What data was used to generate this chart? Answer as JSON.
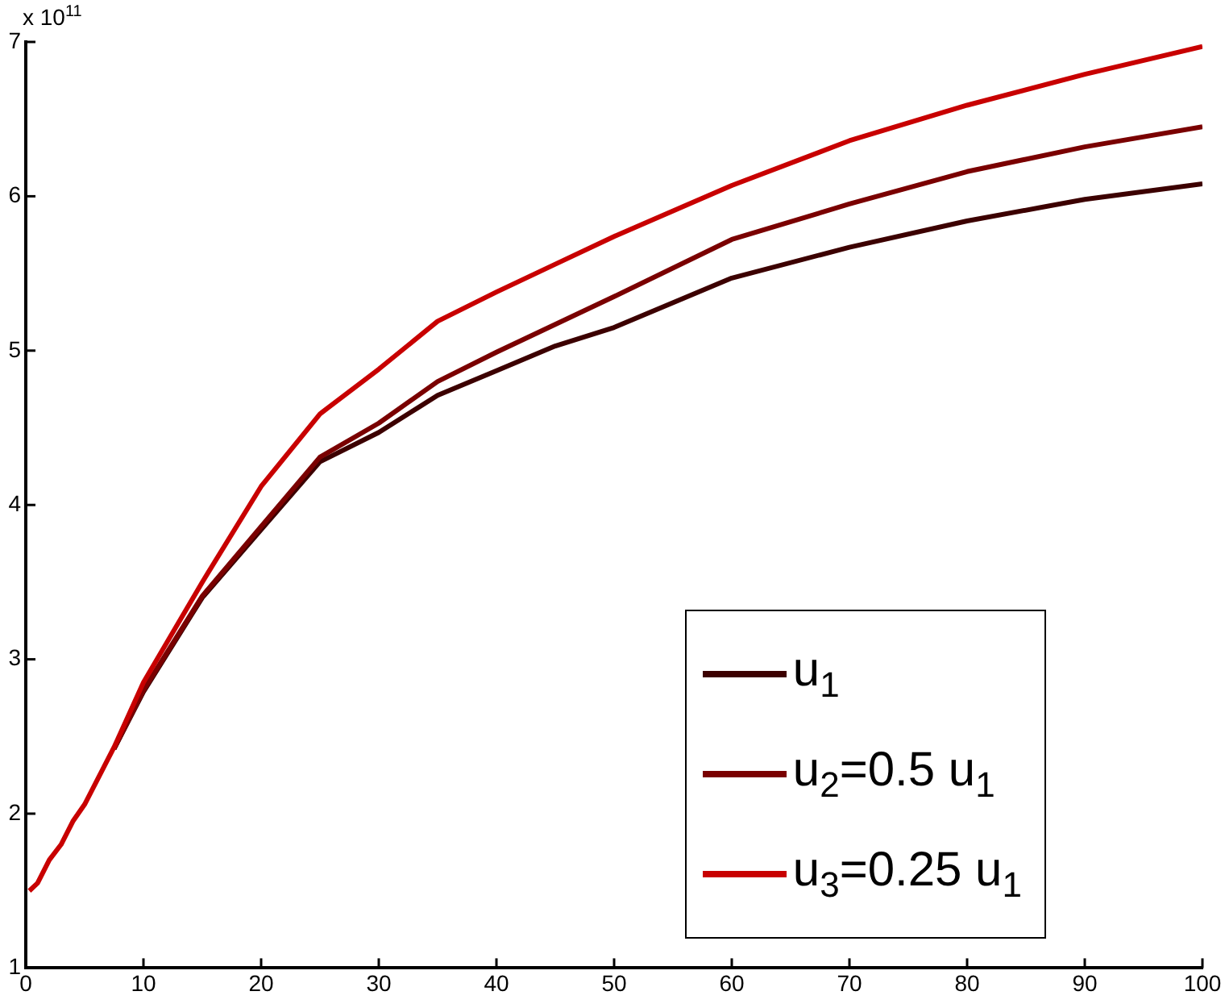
{
  "chart_data": {
    "type": "line",
    "x": [
      0.3,
      1,
      2,
      3,
      4,
      5,
      7.5,
      10,
      15,
      20,
      25,
      30,
      35,
      40,
      45,
      50,
      60,
      70,
      80,
      90,
      100
    ],
    "series": [
      {
        "name": "u$_{1}$",
        "color": "#3c0000",
        "values": [
          null,
          null,
          null,
          null,
          null,
          null,
          2.42,
          2.79,
          3.4,
          3.84,
          4.28,
          4.47,
          4.71,
          4.87,
          5.03,
          5.15,
          5.47,
          5.67,
          5.84,
          5.98,
          6.08
        ]
      },
      {
        "name": "u$_{2}$=0.5 u$_{1}$",
        "color": "#7a0000",
        "values": [
          null,
          null,
          null,
          null,
          null,
          null,
          2.42,
          2.8,
          3.41,
          3.86,
          4.31,
          4.53,
          4.8,
          4.99,
          5.17,
          5.35,
          5.72,
          5.95,
          6.16,
          6.32,
          6.45
        ]
      },
      {
        "name": "u$_{3}$=0.25 u$_{1}$",
        "color": "#c80000",
        "values": [
          1.5,
          1.55,
          1.7,
          1.8,
          1.95,
          2.06,
          2.43,
          2.85,
          3.5,
          4.12,
          4.59,
          4.88,
          5.19,
          5.38,
          5.56,
          5.74,
          6.07,
          6.36,
          6.59,
          6.79,
          6.97
        ]
      }
    ],
    "xlim": [
      0,
      100
    ],
    "xticks": [
      0,
      10,
      20,
      30,
      40,
      50,
      60,
      70,
      80,
      90,
      100
    ],
    "ylim": [
      1,
      7
    ],
    "yticks": [
      1,
      2,
      3,
      4,
      5,
      6,
      7
    ],
    "annotations": [
      "x 10$^{11}$"
    ],
    "grid": false,
    "legend": "bottom right"
  }
}
